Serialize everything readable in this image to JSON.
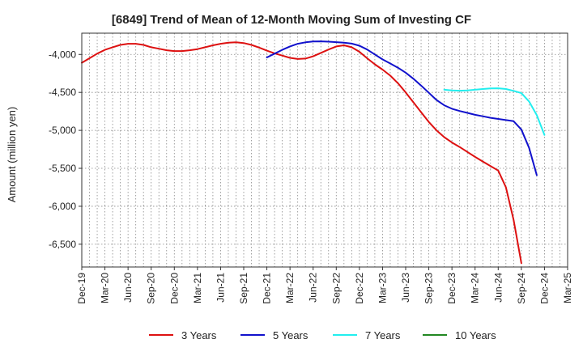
{
  "chart_data": {
    "type": "line",
    "title": "[6849]  Trend of Mean of 12-Month Moving Sum of Investing CF",
    "xlabel": "",
    "ylabel": "Amount (million yen)",
    "ylim": [
      -6800,
      -3720
    ],
    "yticks": [
      -4000,
      -4500,
      -5000,
      -5500,
      -6000,
      -6500
    ],
    "ytick_labels": [
      "-4,000",
      "-4,500",
      "-5,000",
      "-5,500",
      "-6,000",
      "-6,500"
    ],
    "x_start": "2019-12",
    "x_end": "2025-03",
    "xtick_labels": [
      "Dec-19",
      "Mar-20",
      "Jun-20",
      "Sep-20",
      "Dec-20",
      "Mar-21",
      "Jun-21",
      "Sep-21",
      "Dec-21",
      "Mar-22",
      "Jun-22",
      "Sep-22",
      "Dec-22",
      "Mar-23",
      "Jun-23",
      "Sep-23",
      "Dec-23",
      "Mar-24",
      "Jun-24",
      "Sep-24",
      "Dec-24",
      "Mar-25"
    ],
    "legend_position": "bottom",
    "series": [
      {
        "name": "3 Years",
        "color": "#dd1111",
        "start": "2019-12",
        "values": [
          -4110,
          -4050,
          -3990,
          -3940,
          -3905,
          -3875,
          -3860,
          -3860,
          -3875,
          -3905,
          -3925,
          -3945,
          -3955,
          -3955,
          -3945,
          -3930,
          -3905,
          -3880,
          -3860,
          -3845,
          -3840,
          -3850,
          -3875,
          -3910,
          -3950,
          -3985,
          -4015,
          -4045,
          -4060,
          -4055,
          -4025,
          -3980,
          -3935,
          -3895,
          -3880,
          -3905,
          -3965,
          -4050,
          -4130,
          -4200,
          -4280,
          -4380,
          -4500,
          -4630,
          -4760,
          -4890,
          -5000,
          -5090,
          -5160,
          -5220,
          -5285,
          -5350,
          -5410,
          -5470,
          -5530,
          -5750,
          -6180,
          -6750
        ]
      },
      {
        "name": "5 Years",
        "color": "#1111cc",
        "start": "2021-12",
        "values": [
          -4040,
          -3990,
          -3940,
          -3895,
          -3860,
          -3840,
          -3830,
          -3828,
          -3832,
          -3838,
          -3845,
          -3858,
          -3885,
          -3935,
          -4000,
          -4065,
          -4120,
          -4175,
          -4240,
          -4320,
          -4410,
          -4505,
          -4600,
          -4670,
          -4715,
          -4745,
          -4770,
          -4795,
          -4815,
          -4835,
          -4850,
          -4865,
          -4880,
          -4990,
          -5230,
          -5590
        ]
      },
      {
        "name": "7 Years",
        "color": "#22eeee",
        "start": "2023-11",
        "values": [
          -4465,
          -4475,
          -4478,
          -4475,
          -4465,
          -4455,
          -4448,
          -4446,
          -4455,
          -4480,
          -4510,
          -4620,
          -4800,
          -5060
        ]
      },
      {
        "name": "10 Years",
        "color": "#228822",
        "start": "2024-12",
        "values": []
      }
    ]
  }
}
